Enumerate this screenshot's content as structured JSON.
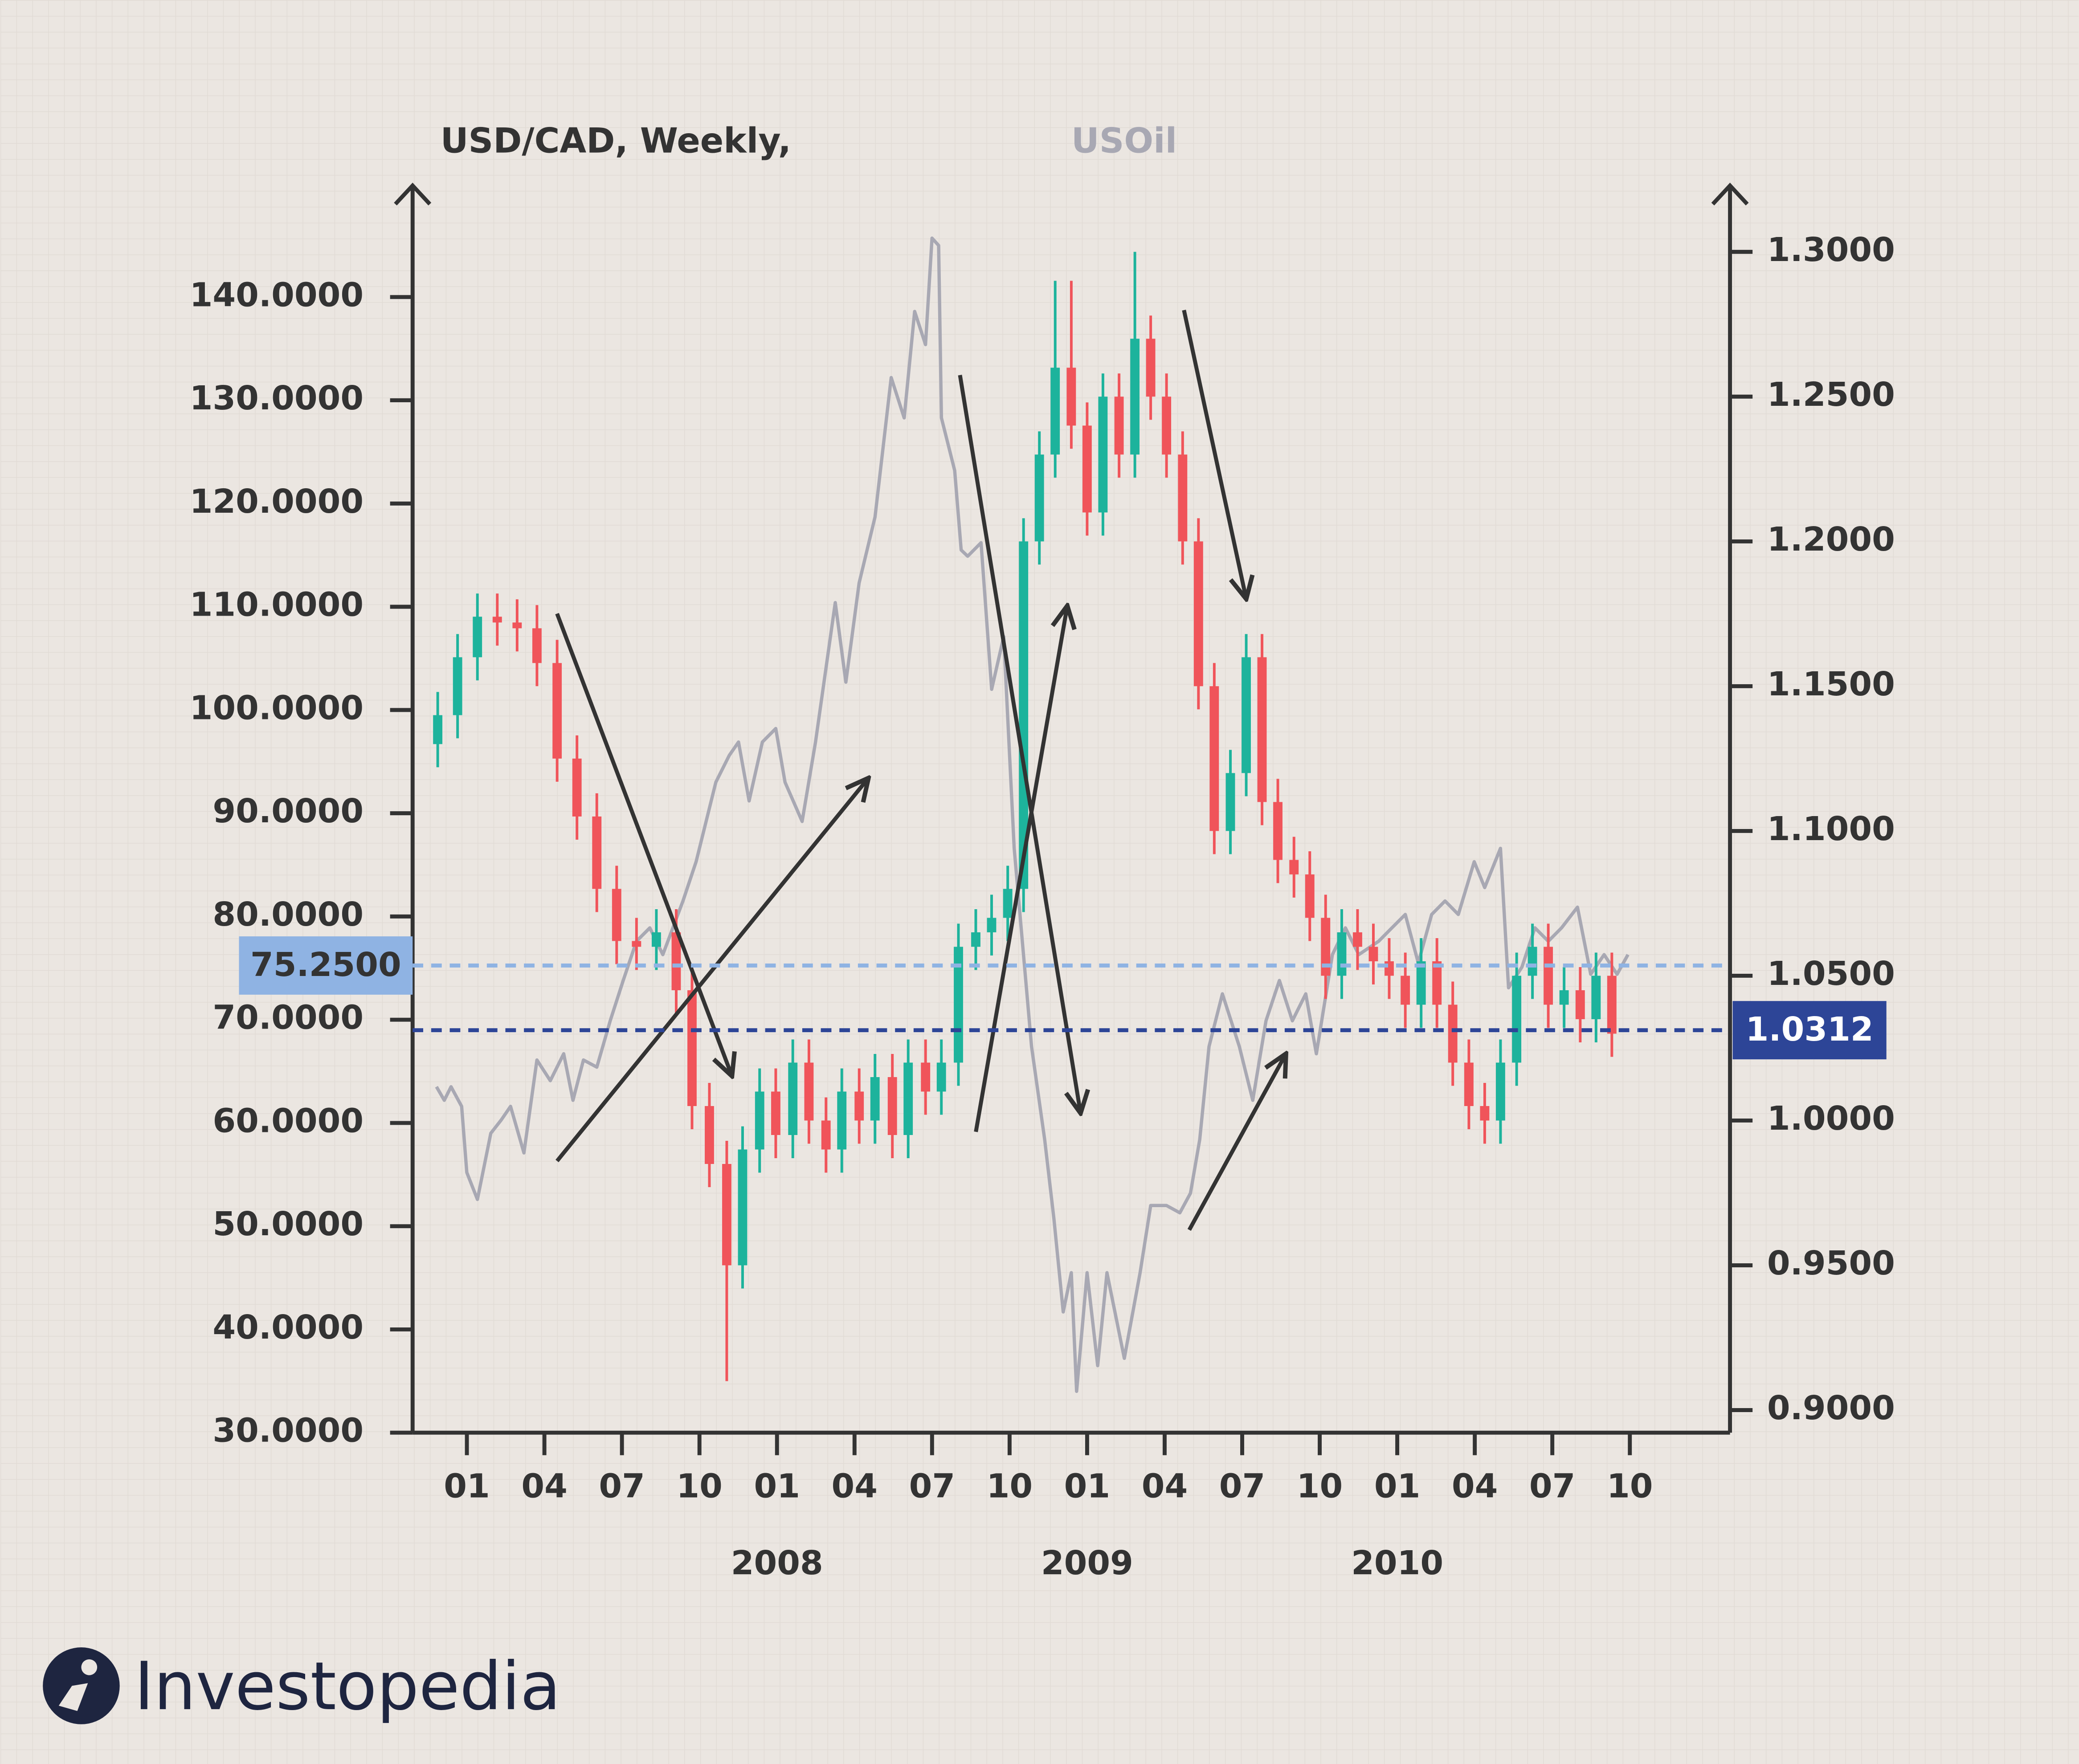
{
  "chart_data": {
    "type": "candlestick",
    "xlim": [
      2006.825,
      2011.073
    ],
    "xticks": [
      {
        "value": 2007,
        "label": "01"
      },
      {
        "value": 2007.25,
        "label": "04"
      },
      {
        "value": 2007.5,
        "label": "07"
      },
      {
        "value": 2007.75,
        "label": "10"
      },
      {
        "value": 2008,
        "label": "01"
      },
      {
        "value": 2008.25,
        "label": "04"
      },
      {
        "value": 2008.5,
        "label": "07"
      },
      {
        "value": 2008.75,
        "label": "10"
      },
      {
        "value": 2009,
        "label": "01"
      },
      {
        "value": 2009.25,
        "label": "04"
      },
      {
        "value": 2009.5,
        "label": "07"
      },
      {
        "value": 2009.75,
        "label": "10"
      },
      {
        "value": 2010,
        "label": "01"
      },
      {
        "value": 2010.25,
        "label": "04"
      },
      {
        "value": 2010.5,
        "label": "07"
      },
      {
        "value": 2010.75,
        "label": "10"
      }
    ],
    "year_labels": [
      {
        "value": 2008,
        "label": "2008"
      },
      {
        "value": 2009,
        "label": "2009"
      },
      {
        "value": 2010,
        "label": "2010"
      }
    ],
    "ylim": [
      30,
      150.8
    ],
    "yticks": [
      {
        "value": 30,
        "label": "30.0000"
      },
      {
        "value": 40,
        "label": "40.0000"
      },
      {
        "value": 50,
        "label": "50.0000"
      },
      {
        "value": 60,
        "label": "60.0000"
      },
      {
        "value": 70,
        "label": "70.0000"
      },
      {
        "value": 80,
        "label": "80.0000"
      },
      {
        "value": 90,
        "label": "90.0000"
      },
      {
        "value": 100,
        "label": "100.0000"
      },
      {
        "value": 110,
        "label": "110.0000"
      },
      {
        "value": 120,
        "label": "120.0000"
      },
      {
        "value": 130,
        "label": "130.0000"
      },
      {
        "value": 140,
        "label": "140.0000"
      }
    ],
    "y2lim": [
      0.8922,
      1.3229
    ],
    "y2ticks": [
      {
        "value": 0.9,
        "label": "0.9000"
      },
      {
        "value": 0.95,
        "label": "0.9500"
      },
      {
        "value": 1,
        "label": "1.0000"
      },
      {
        "value": 1.05,
        "label": "1.0500"
      },
      {
        "value": 1.1,
        "label": "1.1000"
      },
      {
        "value": 1.15,
        "label": "1.1500"
      },
      {
        "value": 1.2,
        "label": "1.2000"
      },
      {
        "value": 1.25,
        "label": "1.2500"
      },
      {
        "value": 1.3,
        "label": "1.3000"
      }
    ],
    "reference_lines": [
      {
        "value": 75.25,
        "label": "75.2500",
        "axis": "y",
        "color": "#8fb3e3"
      },
      {
        "value": 1.0312,
        "label": "1.0312",
        "axis": "y2",
        "color": "#2d4597"
      }
    ],
    "series": [
      {
        "name": "USD/CAD, Weekly,",
        "type": "candlestick",
        "axis": "y2",
        "color": "#333333",
        "up_color": "#1db39c",
        "down_color": "#f0545a",
        "x": [
          2006.906,
          2006.97,
          2007.034,
          2007.098,
          2007.162,
          2007.226,
          2007.291,
          2007.355,
          2007.419,
          2007.483,
          2007.547,
          2007.611,
          2007.675,
          2007.726,
          2007.782,
          2007.838,
          2007.889,
          2007.944,
          2007.996,
          2008.051,
          2008.103,
          2008.158,
          2008.209,
          2008.265,
          2008.316,
          2008.372,
          2008.423,
          2008.479,
          2008.53,
          2008.585,
          2008.641,
          2008.692,
          2008.744,
          2008.795,
          2008.846,
          2008.897,
          2008.949,
          2009.0,
          2009.051,
          2009.103,
          2009.154,
          2009.205,
          2009.256,
          2009.308,
          2009.359,
          2009.41,
          2009.462,
          2009.513,
          2009.564,
          2009.615,
          2009.667,
          2009.718,
          2009.769,
          2009.821,
          2009.872,
          2009.923,
          2009.974,
          2010.026,
          2010.077,
          2010.128,
          2010.179,
          2010.231,
          2010.282,
          2010.333,
          2010.385,
          2010.436,
          2010.487,
          2010.538,
          2010.59,
          2010.641,
          2010.692
        ],
        "open": [
          1.13,
          1.14,
          1.16,
          1.174,
          1.172,
          1.17,
          1.158,
          1.125,
          1.105,
          1.08,
          1.062,
          1.06,
          1.065,
          1.045,
          1.005,
          0.985,
          0.95,
          0.99,
          1.01,
          0.995,
          1.02,
          1.0,
          0.99,
          1.01,
          1.0,
          1.015,
          0.995,
          1.02,
          1.01,
          1.02,
          1.06,
          1.065,
          1.07,
          1.08,
          1.2,
          1.23,
          1.26,
          1.24,
          1.21,
          1.25,
          1.23,
          1.27,
          1.25,
          1.23,
          1.2,
          1.15,
          1.1,
          1.12,
          1.16,
          1.11,
          1.09,
          1.085,
          1.07,
          1.05,
          1.065,
          1.06,
          1.055,
          1.05,
          1.04,
          1.055,
          1.04,
          1.02,
          1.005,
          1.0,
          1.02,
          1.05,
          1.06,
          1.04,
          1.045,
          1.035,
          1.05
        ],
        "high": [
          1.148,
          1.168,
          1.182,
          1.182,
          1.18,
          1.178,
          1.166,
          1.133,
          1.113,
          1.088,
          1.07,
          1.073,
          1.073,
          1.053,
          1.013,
          0.993,
          0.998,
          1.018,
          1.018,
          1.028,
          1.028,
          1.008,
          1.018,
          1.018,
          1.023,
          1.023,
          1.028,
          1.028,
          1.028,
          1.068,
          1.073,
          1.078,
          1.088,
          1.208,
          1.238,
          1.29,
          1.29,
          1.248,
          1.258,
          1.258,
          1.3,
          1.278,
          1.258,
          1.238,
          1.208,
          1.158,
          1.128,
          1.168,
          1.168,
          1.118,
          1.098,
          1.093,
          1.078,
          1.073,
          1.073,
          1.068,
          1.063,
          1.058,
          1.063,
          1.063,
          1.048,
          1.028,
          1.013,
          1.028,
          1.058,
          1.068,
          1.068,
          1.053,
          1.053,
          1.058,
          1.058
        ],
        "low": [
          1.122,
          1.132,
          1.152,
          1.164,
          1.162,
          1.15,
          1.117,
          1.097,
          1.072,
          1.054,
          1.052,
          1.052,
          1.037,
          0.997,
          0.977,
          0.91,
          0.942,
          0.982,
          0.987,
          0.987,
          0.992,
          0.982,
          0.982,
          0.992,
          0.992,
          0.987,
          0.987,
          1.002,
          1.002,
          1.012,
          1.052,
          1.057,
          1.062,
          1.072,
          1.192,
          1.222,
          1.232,
          1.202,
          1.202,
          1.222,
          1.222,
          1.242,
          1.222,
          1.192,
          1.142,
          1.092,
          1.092,
          1.112,
          1.102,
          1.082,
          1.077,
          1.062,
          1.042,
          1.042,
          1.052,
          1.047,
          1.042,
          1.032,
          1.032,
          1.032,
          1.012,
          0.997,
          0.992,
          0.992,
          1.012,
          1.042,
          1.032,
          1.032,
          1.027,
          1.027,
          1.022
        ],
        "close": [
          1.14,
          1.16,
          1.174,
          1.172,
          1.17,
          1.158,
          1.125,
          1.105,
          1.08,
          1.062,
          1.06,
          1.065,
          1.045,
          1.005,
          0.985,
          0.95,
          0.99,
          1.01,
          0.995,
          1.02,
          1.0,
          0.99,
          1.01,
          1.0,
          1.015,
          0.995,
          1.02,
          1.01,
          1.02,
          1.06,
          1.065,
          1.07,
          1.08,
          1.2,
          1.23,
          1.26,
          1.24,
          1.21,
          1.25,
          1.23,
          1.27,
          1.25,
          1.23,
          1.2,
          1.15,
          1.1,
          1.12,
          1.16,
          1.11,
          1.09,
          1.085,
          1.07,
          1.05,
          1.065,
          1.06,
          1.055,
          1.05,
          1.04,
          1.055,
          1.04,
          1.02,
          1.005,
          1.0,
          1.02,
          1.05,
          1.06,
          1.04,
          1.045,
          1.035,
          1.05,
          1.03
        ]
      },
      {
        "name": "USOil",
        "type": "line",
        "axis": "y",
        "color": "#a8a8b3",
        "x": [
          2006.902,
          2006.927,
          2006.949,
          2006.983,
          2007.0,
          2007.034,
          2007.077,
          2007.111,
          2007.141,
          2007.184,
          2007.226,
          2007.269,
          2007.312,
          2007.342,
          2007.376,
          2007.419,
          2007.462,
          2007.504,
          2007.547,
          2007.59,
          2007.632,
          2007.697,
          2007.739,
          2007.803,
          2007.846,
          2007.876,
          2007.91,
          2007.953,
          2007.996,
          2008.026,
          2008.081,
          2008.124,
          2008.188,
          2008.222,
          2008.265,
          2008.316,
          2008.368,
          2008.41,
          2008.444,
          2008.479,
          2008.5,
          2008.521,
          2008.53,
          2008.573,
          2008.594,
          2008.615,
          2008.658,
          2008.692,
          2008.731,
          2008.765,
          2008.821,
          2008.863,
          2008.893,
          2008.923,
          2008.949,
          2008.966,
          2009.0,
          2009.034,
          2009.064,
          2009.12,
          2009.171,
          2009.205,
          2009.256,
          2009.299,
          2009.333,
          2009.363,
          2009.393,
          2009.436,
          2009.491,
          2009.534,
          2009.577,
          2009.62,
          2009.662,
          2009.705,
          2009.739,
          2009.791,
          2009.833,
          2009.876,
          2009.94,
          2009.983,
          2010.026,
          2010.068,
          2010.111,
          2010.154,
          2010.197,
          2010.248,
          2010.282,
          2010.333,
          2010.359,
          2010.402,
          2010.444,
          2010.487,
          2010.53,
          2010.581,
          2010.624,
          2010.667,
          2010.709,
          2010.744
        ],
        "values": [
          63.5,
          62.2,
          63.5,
          61.6,
          55.2,
          52.6,
          59.0,
          60.3,
          61.6,
          57.1,
          66.1,
          64.1,
          66.7,
          62.2,
          66.1,
          65.4,
          69.9,
          73.8,
          77.6,
          78.9,
          76.3,
          81.5,
          85.3,
          93.0,
          95.6,
          96.9,
          91.2,
          96.9,
          98.2,
          93.0,
          89.2,
          96.9,
          110.4,
          102.7,
          112.3,
          118.7,
          132.2,
          128.3,
          138.6,
          135.4,
          145.7,
          145.0,
          128.3,
          123.2,
          115.5,
          114.9,
          116.2,
          102.0,
          107.1,
          86.6,
          67.4,
          58.4,
          50.7,
          41.7,
          45.5,
          34.0,
          45.5,
          36.5,
          45.5,
          37.2,
          45.5,
          52.0,
          52.0,
          51.3,
          53.2,
          58.4,
          67.4,
          72.5,
          67.4,
          62.2,
          69.9,
          73.8,
          69.9,
          72.5,
          66.7,
          76.3,
          78.9,
          76.3,
          77.6,
          78.9,
          80.2,
          75.5,
          80.2,
          81.5,
          80.2,
          85.3,
          82.8,
          86.6,
          73.1,
          75.1,
          78.9,
          77.6,
          78.9,
          80.9,
          74.4,
          76.3,
          74.4,
          76.3
        ]
      }
    ]
  },
  "logo": "Investopedia"
}
